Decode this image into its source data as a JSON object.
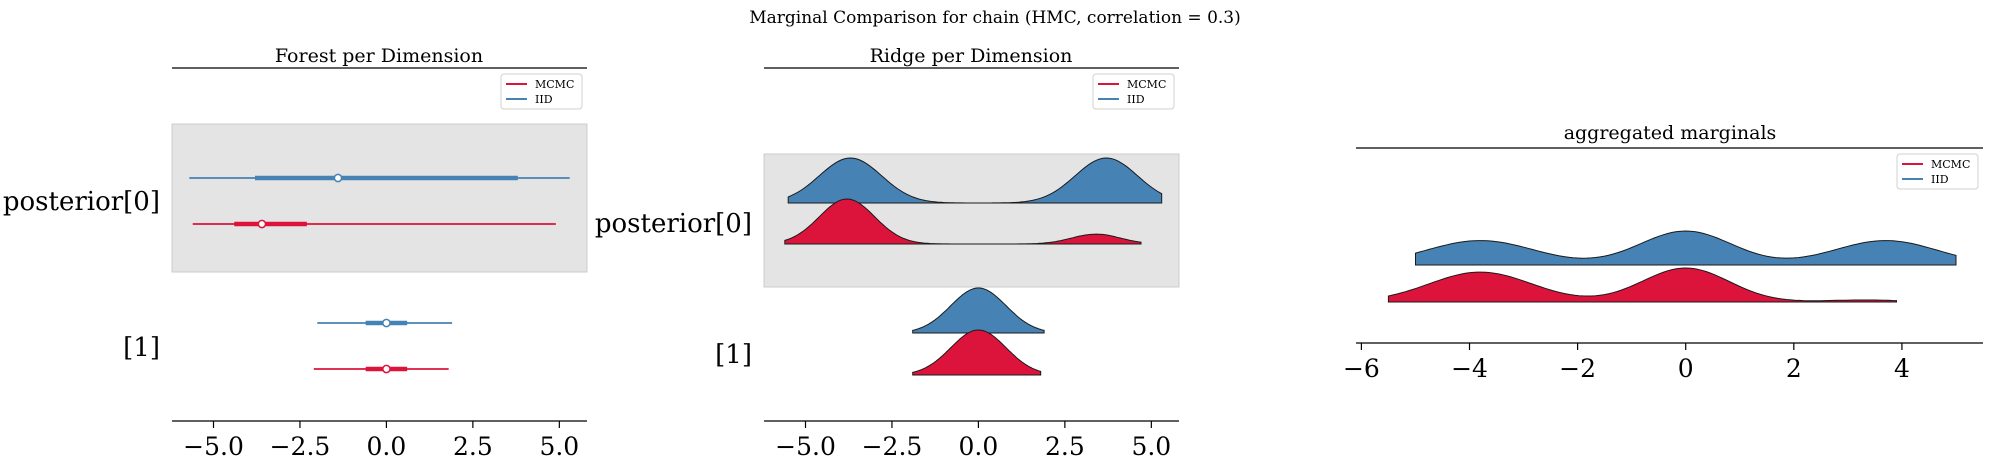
{
  "suptitle": "Marginal Comparison for chain (HMC, correlation = 0.3)",
  "colors": {
    "mcmc": "#dc143c",
    "iid": "#4682b4",
    "band": "#e4e4e4"
  },
  "legend": {
    "mcmc": "MCMC",
    "iid": "IID"
  },
  "chart_data": [
    {
      "type": "forest",
      "title": "Forest per Dimension",
      "y_labels": [
        "posterior[0]",
        "[1]"
      ],
      "xlim": [
        -6.2,
        5.8
      ],
      "x_ticks": [
        -5.0,
        -2.5,
        0.0,
        2.5,
        5.0
      ],
      "x_tick_labels": [
        "−5.0",
        "−2.5",
        "0.0",
        "2.5",
        "5.0"
      ],
      "legend_position": "upper right",
      "series": [
        {
          "name": "IID",
          "dims": [
            {
              "median": -1.4,
              "hdi_50": [
                -3.8,
                3.8
              ],
              "hdi_94": [
                -5.7,
                5.3
              ]
            },
            {
              "median": 0.0,
              "hdi_50": [
                -0.6,
                0.6
              ],
              "hdi_94": [
                -2.0,
                1.9
              ]
            }
          ]
        },
        {
          "name": "MCMC",
          "dims": [
            {
              "median": -3.6,
              "hdi_50": [
                -4.4,
                -2.3
              ],
              "hdi_94": [
                -5.6,
                4.9
              ]
            },
            {
              "median": 0.0,
              "hdi_50": [
                -0.6,
                0.6
              ],
              "hdi_94": [
                -2.1,
                1.8
              ]
            }
          ]
        }
      ]
    },
    {
      "type": "ridge",
      "title": "Ridge per Dimension",
      "y_labels": [
        "posterior[0]",
        "[1]"
      ],
      "xlim": [
        -6.2,
        5.8
      ],
      "x_ticks": [
        -5.0,
        -2.5,
        0.0,
        2.5,
        5.0
      ],
      "x_tick_labels": [
        "−5.0",
        "−2.5",
        "0.0",
        "2.5",
        "5.0"
      ],
      "legend_position": "upper right",
      "series": [
        {
          "name": "IID",
          "dims": [
            {
              "x_range": [
                -5.5,
                5.3
              ],
              "modes": [
                [
                  -3.7,
                  0.9,
                  1.0
                ],
                [
                  3.7,
                  0.9,
                  1.0
                ]
              ]
            },
            {
              "x_range": [
                -1.9,
                1.9
              ],
              "modes": [
                [
                  0.0,
                  0.8,
                  1.0
                ]
              ]
            }
          ]
        },
        {
          "name": "MCMC",
          "dims": [
            {
              "x_range": [
                -5.6,
                4.7
              ],
              "modes": [
                [
                  -3.8,
                  0.8,
                  1.0
                ],
                [
                  3.4,
                  0.7,
                  0.22
                ]
              ]
            },
            {
              "x_range": [
                -1.9,
                1.8
              ],
              "modes": [
                [
                  0.0,
                  0.8,
                  1.0
                ]
              ]
            }
          ]
        }
      ]
    },
    {
      "type": "ridge",
      "title": "aggregated marginals",
      "xlim": [
        -6.1,
        5.5
      ],
      "x_ticks": [
        -6,
        -4,
        -2,
        0,
        2,
        4
      ],
      "x_tick_labels": [
        "−6",
        "−4",
        "−2",
        "0",
        "2",
        "4"
      ],
      "legend_position": "upper right",
      "series": [
        {
          "name": "IID",
          "x_range": [
            -5.0,
            5.0
          ],
          "modes": [
            [
              -3.8,
              1.0,
              0.72
            ],
            [
              0.0,
              0.85,
              1.0
            ],
            [
              3.7,
              0.95,
              0.72
            ]
          ]
        },
        {
          "name": "MCMC",
          "x_range": [
            -5.5,
            3.9
          ],
          "modes": [
            [
              -3.8,
              0.95,
              0.88
            ],
            [
              0.0,
              0.8,
              1.0
            ],
            [
              3.3,
              0.7,
              0.06
            ]
          ]
        }
      ]
    }
  ]
}
